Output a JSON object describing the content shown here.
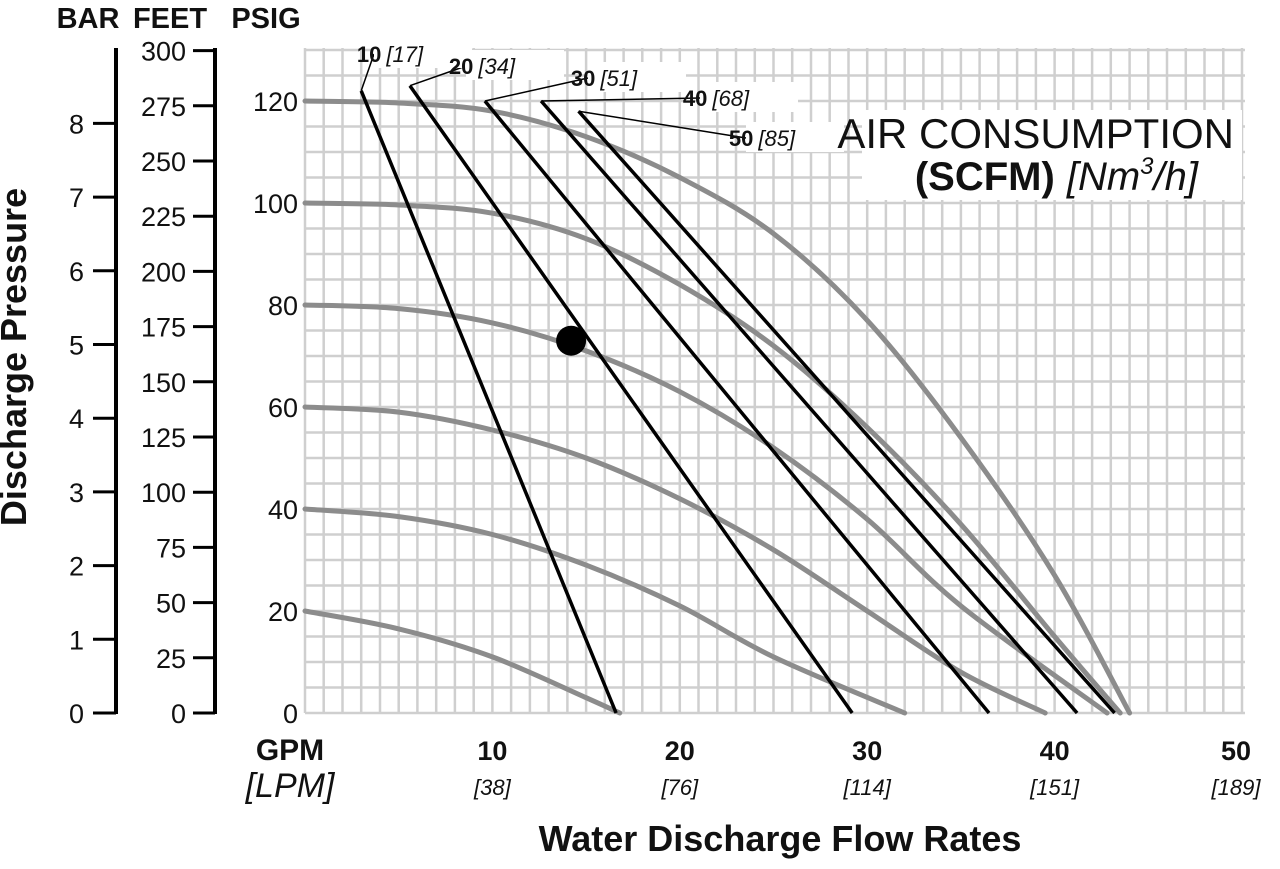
{
  "chart_data": {
    "type": "line",
    "axis_headers": {
      "bar": "BAR",
      "feet": "FEET",
      "psig": "PSIG"
    },
    "ylabel": "Discharge Pressure",
    "xlabel": "Water Discharge Flow Rates",
    "x_unit": {
      "main": "GPM",
      "sub": "[LPM]"
    },
    "xlim": [
      0,
      50
    ],
    "ylim": [
      0,
      130
    ],
    "x_ticks": [
      {
        "value": 10,
        "label": "10",
        "sub": "[38]"
      },
      {
        "value": 20,
        "label": "20",
        "sub": "[76]"
      },
      {
        "value": 30,
        "label": "30",
        "sub": "[114]"
      },
      {
        "value": 40,
        "label": "40",
        "sub": "[151]"
      },
      {
        "value": 50,
        "label": "50",
        "sub": "[189]"
      }
    ],
    "psig_ticks": [
      "0",
      "20",
      "40",
      "60",
      "80",
      "100",
      "120"
    ],
    "feet_ticks": [
      "0",
      "25",
      "50",
      "75",
      "100",
      "125",
      "150",
      "175",
      "200",
      "225",
      "250",
      "275",
      "300"
    ],
    "bar_ticks": [
      "0",
      "1",
      "2",
      "3",
      "4",
      "5",
      "6",
      "7",
      "8"
    ],
    "legend": {
      "line1": "AIR CONSUMPTION",
      "bold": "(SCFM)",
      "metric_pre": "[Nm",
      "metric_sup": "3",
      "metric_post": "/h]"
    },
    "grid": true,
    "pressure_curves": [
      {
        "points": [
          [
            0,
            120
          ],
          [
            5,
            119.6
          ],
          [
            10,
            118
          ],
          [
            15,
            113
          ],
          [
            20,
            105
          ],
          [
            25,
            94
          ],
          [
            30,
            77
          ],
          [
            35,
            54
          ],
          [
            40,
            27
          ],
          [
            44,
            0
          ]
        ]
      },
      {
        "points": [
          [
            0,
            100
          ],
          [
            5,
            99.6
          ],
          [
            10,
            98
          ],
          [
            15,
            93
          ],
          [
            20,
            84
          ],
          [
            25,
            72
          ],
          [
            30,
            56
          ],
          [
            35,
            37
          ],
          [
            40,
            15
          ],
          [
            43.5,
            0
          ]
        ]
      },
      {
        "points": [
          [
            0,
            80
          ],
          [
            5,
            79.3
          ],
          [
            10,
            76.5
          ],
          [
            15,
            71
          ],
          [
            20,
            63
          ],
          [
            25,
            52
          ],
          [
            30,
            38
          ],
          [
            35,
            21
          ],
          [
            42.8,
            0
          ]
        ]
      },
      {
        "points": [
          [
            0,
            60
          ],
          [
            5,
            59
          ],
          [
            10,
            55.5
          ],
          [
            15,
            50
          ],
          [
            20,
            42
          ],
          [
            25,
            32
          ],
          [
            30,
            20
          ],
          [
            35,
            8
          ],
          [
            39.5,
            0
          ]
        ]
      },
      {
        "points": [
          [
            0,
            40
          ],
          [
            5,
            38.5
          ],
          [
            10,
            35
          ],
          [
            15,
            29
          ],
          [
            20,
            21
          ],
          [
            25,
            11
          ],
          [
            32,
            0
          ]
        ]
      },
      {
        "points": [
          [
            0,
            20
          ],
          [
            5,
            16.5
          ],
          [
            10,
            11
          ],
          [
            15,
            3
          ],
          [
            16.8,
            0
          ]
        ]
      }
    ],
    "air_lines": [
      {
        "label": "10",
        "metric": "[17]",
        "start": [
          3,
          122
        ],
        "end": [
          16.6,
          0
        ]
      },
      {
        "label": "20",
        "metric": "[34]",
        "start": [
          5.6,
          123
        ],
        "end": [
          29.2,
          0
        ]
      },
      {
        "label": "30",
        "metric": "[51]",
        "start": [
          9.6,
          120
        ],
        "end": [
          36.5,
          0
        ]
      },
      {
        "label": "40",
        "metric": "[68]",
        "start": [
          12.6,
          120
        ],
        "end": [
          41.2,
          0
        ]
      },
      {
        "label": "50",
        "metric": "[85]",
        "start": [
          14.6,
          118
        ],
        "end": [
          43.2,
          0
        ]
      }
    ],
    "operating_point": {
      "x": 14.2,
      "y": 73
    }
  }
}
